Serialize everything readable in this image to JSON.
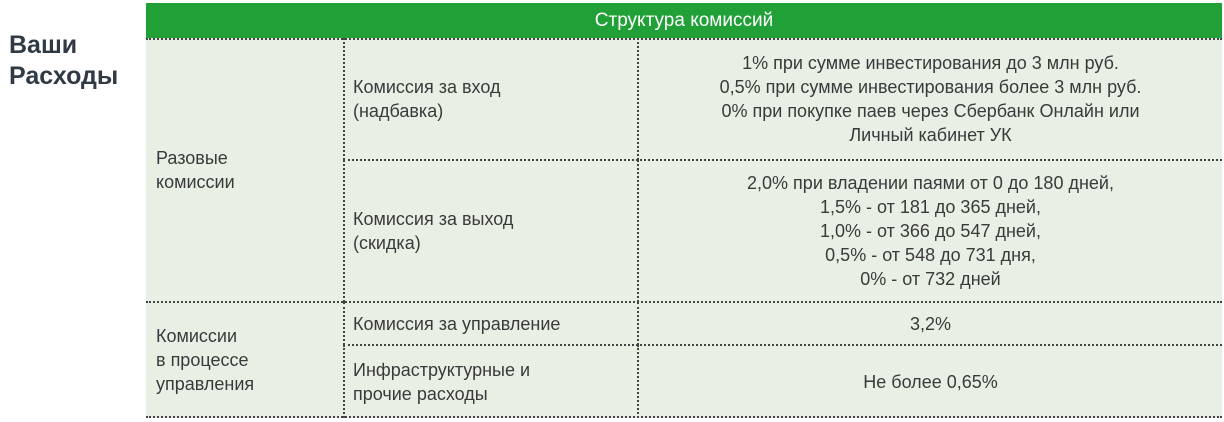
{
  "side_title": "Ваши\nРасходы",
  "table": {
    "header": "Структура комиссий",
    "groups": [
      {
        "label": "Разовые\nкомиссии",
        "rows": [
          {
            "name": "Комиссия за вход\n(надбавка)",
            "value": "1% при сумме инвестирования до 3 млн руб.\n0,5% при сумме инвестирования более 3 млн руб.\n0% при покупке паев через Сбербанк Онлайн или\nЛичный кабинет УК"
          },
          {
            "name": "Комиссия за выход\n(скидка)",
            "value": "2,0% при владении паями от 0 до 180 дней,\n1,5% - от 181 до 365 дней,\n1,0% - от 366 до 547 дней,\n0,5% - от 548 до 731 дня,\n0% - от 732 дней"
          }
        ]
      },
      {
        "label": "Комиссии\nв процессе\nуправления",
        "rows": [
          {
            "name": "Комиссия за управление",
            "value": "3,2%"
          },
          {
            "name": "Инфраструктурные и\nпрочие расходы",
            "value": "Не более 0,65%"
          }
        ]
      }
    ]
  },
  "colors": {
    "header_bg": "#21a038",
    "body_bg": "#e8f0e6"
  }
}
